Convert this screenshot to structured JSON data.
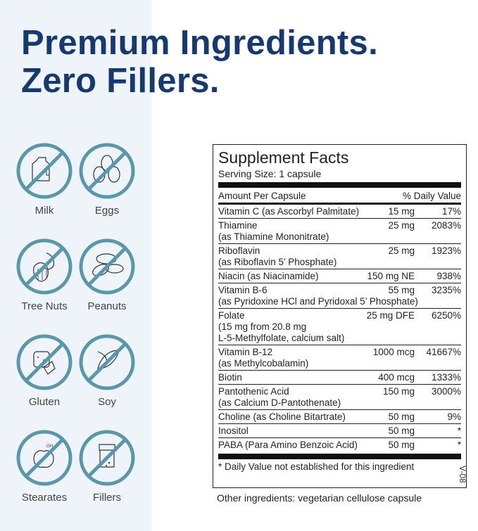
{
  "headline": {
    "line1": "Premium Ingredients.",
    "line2": "Zero Fillers."
  },
  "colors": {
    "navy": "#163a70",
    "teal": "#5b97ab",
    "panel": "#eef4f9"
  },
  "allergens": [
    {
      "label": "Milk",
      "icon": "milk-jug-icon"
    },
    {
      "label": "Eggs",
      "icon": "eggs-icon"
    },
    {
      "label": "Tree Nuts",
      "icon": "tree-nuts-icon"
    },
    {
      "label": "Peanuts",
      "icon": "peanuts-icon"
    },
    {
      "label": "Gluten",
      "icon": "gluten-bread-icon"
    },
    {
      "label": "Soy",
      "icon": "soy-icon"
    },
    {
      "label": "Stearates",
      "icon": "stearates-icon"
    },
    {
      "label": "Fillers",
      "icon": "fillers-capsule-icon"
    }
  ],
  "facts": {
    "title": "Supplement Facts",
    "serving": "Serving Size: 1 capsule",
    "col_amount": "Amount Per Capsule",
    "col_dv": "% Daily Value",
    "rows": [
      {
        "name": "Vitamin C (as Ascorbyl Palmitate)",
        "amount": "15 mg",
        "dv": "17%",
        "sub": []
      },
      {
        "name": "Thiamine",
        "amount": "25 mg",
        "dv": "2083%",
        "sub": [
          "(as Thiamine Mononitrate)"
        ]
      },
      {
        "name": "Riboflavin",
        "amount": "25 mg",
        "dv": "1923%",
        "sub": [
          "(as Riboflavin 5’ Phosphate)"
        ]
      },
      {
        "name": "Niacin (as Niacinamide)",
        "amount": "150 mg NE",
        "dv": "938%",
        "sub": []
      },
      {
        "name": "Vitamin B-6",
        "amount": "55 mg",
        "dv": "3235%",
        "sub": [
          "(as Pyridoxine HCl and Pyridoxal 5’ Phosphate)"
        ]
      },
      {
        "name": "Folate",
        "amount": "25 mg DFE",
        "dv": "6250%",
        "sub": [
          "(15 mg from 20.8 mg",
          "L-5-Methylfolate, calcium salt)"
        ]
      },
      {
        "name": "Vitamin B-12",
        "amount": "1000 mcg",
        "dv": "41667%",
        "sub": [
          "(as Methylcobalamin)"
        ]
      },
      {
        "name": "Biotin",
        "amount": "400 mcg",
        "dv": "1333%",
        "sub": []
      },
      {
        "name": "Pantothenic Acid",
        "amount": "150 mg",
        "dv": "3000%",
        "sub": [
          "(as Calcium D-Pantothenate)"
        ]
      },
      {
        "name": "Choline (as Choline Bitartrate)",
        "amount": "50 mg",
        "dv": "9%",
        "sub": []
      },
      {
        "name": "Inositol",
        "amount": "50 mg",
        "dv": "*",
        "sub": []
      },
      {
        "name": "PABA (Para Amino Benzoic Acid)",
        "amount": "50 mg",
        "dv": "*",
        "sub": []
      }
    ],
    "footnote": "* Daily Value not established for this ingredient"
  },
  "other_ingredients": "Other ingredients: vegetarian cellulose capsule",
  "code": "V-08"
}
